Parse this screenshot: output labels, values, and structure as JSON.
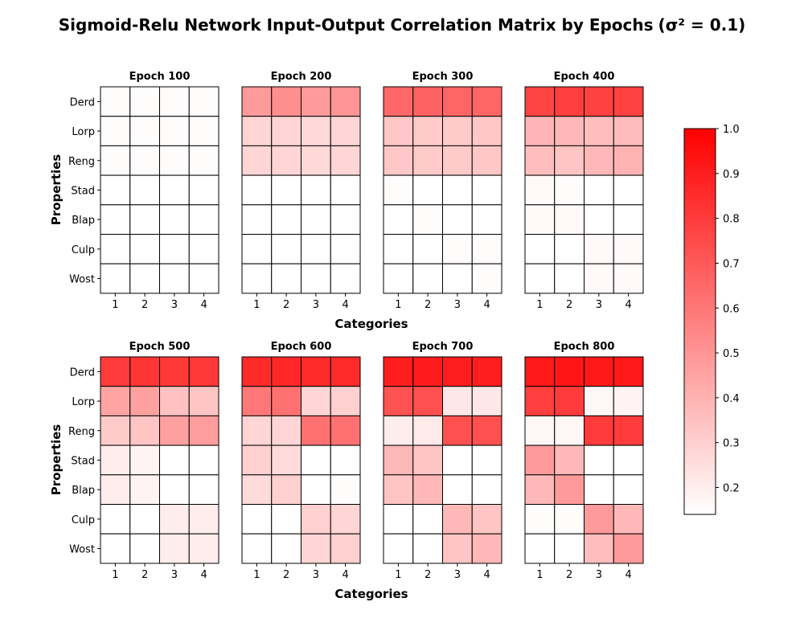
{
  "chart_data": {
    "type": "heatmap",
    "title": "Sigmoid-Relu Network Input-Output Correlation Matrix by Epochs",
    "title_suffix": "(σ² = 0.1)",
    "xlabel": "Categories",
    "ylabel": "Properties",
    "categories": [
      "1",
      "2",
      "3",
      "4"
    ],
    "properties": [
      "Derd",
      "Lorp",
      "Reng",
      "Stad",
      "Blap",
      "Culp",
      "Wost"
    ],
    "colorbar": {
      "min": 0.14,
      "max": 1.0,
      "ticks": [
        "0.2",
        "0.3",
        "0.4",
        "0.5",
        "0.6",
        "0.7",
        "0.8",
        "0.9",
        "1.0"
      ],
      "colors": [
        "#ffffff",
        "#ff0000"
      ]
    },
    "panels": [
      {
        "title": "Epoch 100",
        "values": [
          [
            0.15,
            0.15,
            0.15,
            0.15
          ],
          [
            0.15,
            0.15,
            0.15,
            0.15
          ],
          [
            0.15,
            0.15,
            0.15,
            0.15
          ],
          [
            0.14,
            0.14,
            0.14,
            0.14
          ],
          [
            0.14,
            0.14,
            0.14,
            0.14
          ],
          [
            0.14,
            0.14,
            0.14,
            0.14
          ],
          [
            0.14,
            0.14,
            0.14,
            0.14
          ]
        ]
      },
      {
        "title": "Epoch 200",
        "values": [
          [
            0.48,
            0.52,
            0.48,
            0.5
          ],
          [
            0.28,
            0.28,
            0.27,
            0.28
          ],
          [
            0.28,
            0.28,
            0.27,
            0.28
          ],
          [
            0.14,
            0.14,
            0.14,
            0.14
          ],
          [
            0.14,
            0.14,
            0.14,
            0.14
          ],
          [
            0.14,
            0.14,
            0.14,
            0.14
          ],
          [
            0.14,
            0.14,
            0.14,
            0.14
          ]
        ]
      },
      {
        "title": "Epoch 300",
        "values": [
          [
            0.65,
            0.67,
            0.66,
            0.66
          ],
          [
            0.33,
            0.32,
            0.32,
            0.33
          ],
          [
            0.33,
            0.32,
            0.32,
            0.33
          ],
          [
            0.15,
            0.14,
            0.14,
            0.14
          ],
          [
            0.14,
            0.15,
            0.14,
            0.14
          ],
          [
            0.14,
            0.14,
            0.15,
            0.15
          ],
          [
            0.14,
            0.14,
            0.14,
            0.15
          ]
        ]
      },
      {
        "title": "Epoch 400",
        "values": [
          [
            0.77,
            0.79,
            0.78,
            0.78
          ],
          [
            0.39,
            0.38,
            0.36,
            0.37
          ],
          [
            0.36,
            0.34,
            0.38,
            0.4
          ],
          [
            0.16,
            0.15,
            0.14,
            0.14
          ],
          [
            0.16,
            0.16,
            0.14,
            0.14
          ],
          [
            0.14,
            0.14,
            0.16,
            0.16
          ],
          [
            0.14,
            0.14,
            0.16,
            0.16
          ]
        ]
      },
      {
        "title": "Epoch 500",
        "values": [
          [
            0.8,
            0.82,
            0.81,
            0.81
          ],
          [
            0.45,
            0.46,
            0.35,
            0.34
          ],
          [
            0.32,
            0.34,
            0.46,
            0.47
          ],
          [
            0.2,
            0.18,
            0.14,
            0.14
          ],
          [
            0.2,
            0.18,
            0.14,
            0.14
          ],
          [
            0.14,
            0.14,
            0.2,
            0.2
          ],
          [
            0.14,
            0.14,
            0.2,
            0.2
          ]
        ]
      },
      {
        "title": "Epoch 600",
        "values": [
          [
            0.86,
            0.87,
            0.86,
            0.86
          ],
          [
            0.6,
            0.62,
            0.28,
            0.3
          ],
          [
            0.28,
            0.28,
            0.62,
            0.62
          ],
          [
            0.3,
            0.26,
            0.14,
            0.14
          ],
          [
            0.26,
            0.3,
            0.14,
            0.15
          ],
          [
            0.14,
            0.14,
            0.3,
            0.28
          ],
          [
            0.14,
            0.14,
            0.28,
            0.3
          ]
        ]
      },
      {
        "title": "Epoch 700",
        "values": [
          [
            0.9,
            0.91,
            0.9,
            0.9
          ],
          [
            0.72,
            0.73,
            0.22,
            0.22
          ],
          [
            0.2,
            0.21,
            0.73,
            0.73
          ],
          [
            0.38,
            0.34,
            0.14,
            0.14
          ],
          [
            0.34,
            0.38,
            0.14,
            0.14
          ],
          [
            0.14,
            0.14,
            0.38,
            0.34
          ],
          [
            0.14,
            0.14,
            0.34,
            0.38
          ]
        ]
      },
      {
        "title": "Epoch 800",
        "values": [
          [
            0.92,
            0.93,
            0.92,
            0.92
          ],
          [
            0.79,
            0.8,
            0.17,
            0.18
          ],
          [
            0.17,
            0.17,
            0.8,
            0.8
          ],
          [
            0.48,
            0.38,
            0.14,
            0.14
          ],
          [
            0.38,
            0.48,
            0.14,
            0.14
          ],
          [
            0.15,
            0.15,
            0.48,
            0.38
          ],
          [
            0.14,
            0.14,
            0.36,
            0.48
          ]
        ]
      }
    ]
  }
}
